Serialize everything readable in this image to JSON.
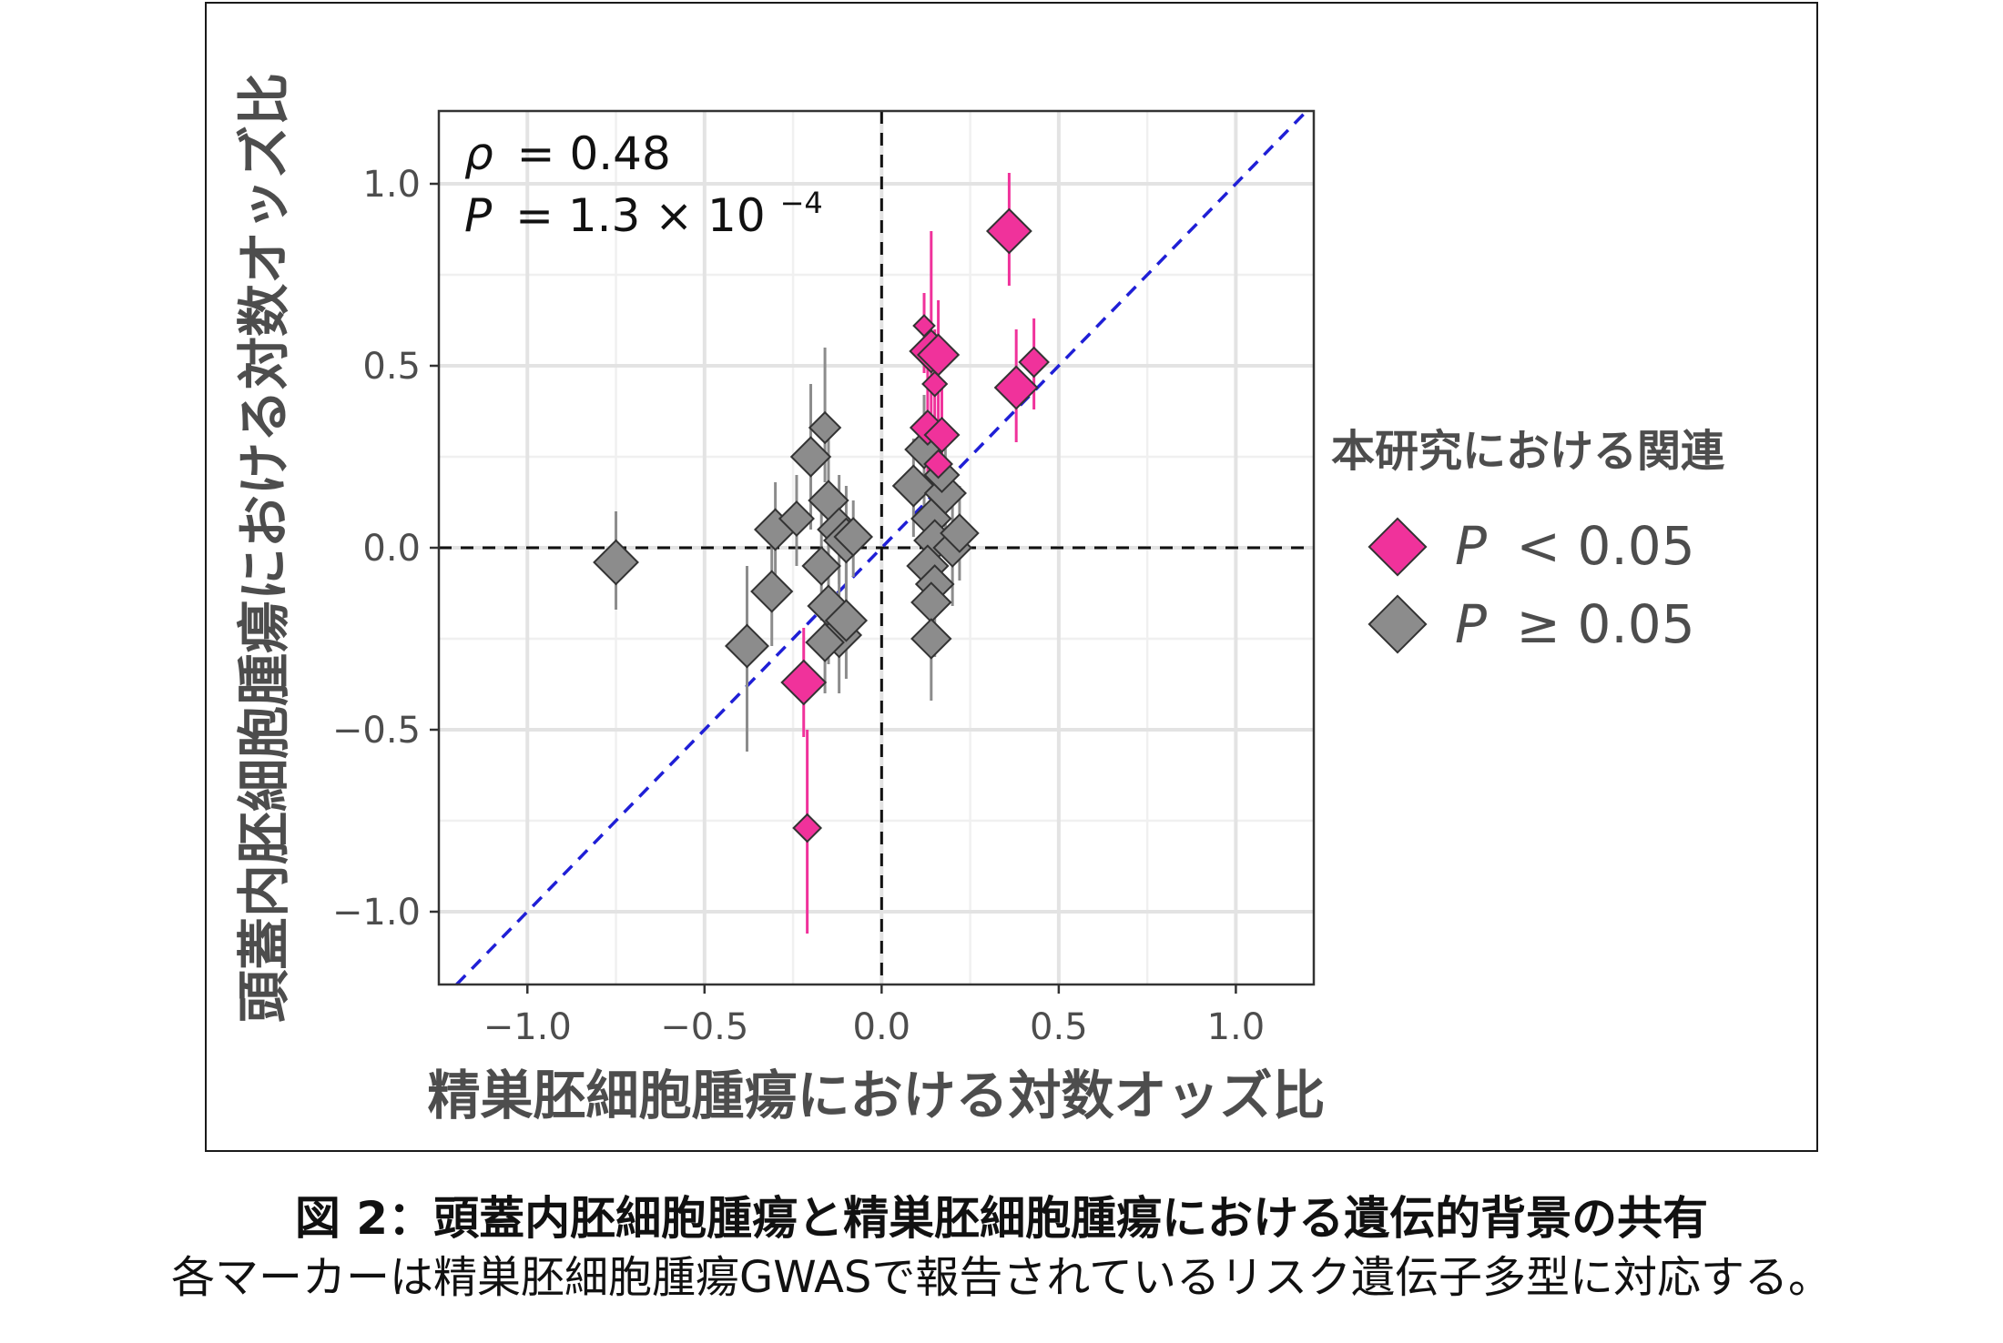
{
  "chart_data": {
    "type": "scatter",
    "xlabel": "精巣胚細胞腫瘍における対数オッズ比",
    "ylabel": "頭蓋内胚細胞腫瘍における対数オッズ比",
    "xlim": [
      -1.25,
      1.22
    ],
    "ylim": [
      -1.2,
      1.2
    ],
    "x_ticks": [
      {
        "value": -1.0,
        "label": "−1.0"
      },
      {
        "value": -0.5,
        "label": "−0.5"
      },
      {
        "value": 0.0,
        "label": "0.0"
      },
      {
        "value": 0.5,
        "label": "0.5"
      },
      {
        "value": 1.0,
        "label": "1.0"
      }
    ],
    "y_ticks": [
      {
        "value": 1.0,
        "label": "1.0"
      },
      {
        "value": 0.5,
        "label": "0.5"
      },
      {
        "value": 0.0,
        "label": "0.0"
      },
      {
        "value": -0.5,
        "label": "−0.5"
      },
      {
        "value": -1.0,
        "label": "−1.0"
      }
    ],
    "grid": true,
    "reference_lines": [
      "x=0",
      "y=0",
      "y=x"
    ],
    "stats": {
      "rho_symbol": "ρ",
      "rho_value": "= 0.48",
      "p_symbol": "P",
      "p_value": "= 1.3 × 10",
      "p_exponent": "−4"
    },
    "legend": {
      "title": "本研究における関連",
      "placement": "right",
      "items": [
        {
          "label": "< 0.05",
          "p_symbol": "P",
          "color": "#f0329b"
        },
        {
          "label": "≥ 0.05",
          "p_symbol": "P",
          "color": "#8c8c8c"
        }
      ]
    },
    "series": [
      {
        "group": "significant",
        "color": "#f0329b",
        "points": [
          {
            "x": 0.36,
            "y": 0.87,
            "lo": 0.72,
            "hi": 1.03,
            "s": 1.0
          },
          {
            "x": 0.38,
            "y": 0.44,
            "lo": 0.29,
            "hi": 0.6,
            "s": 0.95
          },
          {
            "x": 0.43,
            "y": 0.51,
            "lo": 0.38,
            "hi": 0.63,
            "s": 0.55
          },
          {
            "x": 0.14,
            "y": 0.54,
            "lo": 0.28,
            "hi": 0.87,
            "s": 0.95
          },
          {
            "x": 0.16,
            "y": 0.53,
            "lo": 0.34,
            "hi": 0.68,
            "s": 0.9
          },
          {
            "x": 0.12,
            "y": 0.61,
            "lo": 0.48,
            "hi": 0.7,
            "s": 0.3
          },
          {
            "x": 0.15,
            "y": 0.45,
            "lo": 0.3,
            "hi": 0.6,
            "s": 0.4
          },
          {
            "x": 0.13,
            "y": 0.33,
            "lo": 0.15,
            "hi": 0.52,
            "s": 0.7
          },
          {
            "x": 0.17,
            "y": 0.31,
            "lo": 0.18,
            "hi": 0.45,
            "s": 0.7
          },
          {
            "x": 0.16,
            "y": 0.23,
            "lo": 0.12,
            "hi": 0.35,
            "s": 0.5
          },
          {
            "x": -0.22,
            "y": -0.37,
            "lo": -0.52,
            "hi": -0.22,
            "s": 1.0
          },
          {
            "x": -0.21,
            "y": -0.77,
            "lo": -1.06,
            "hi": -0.5,
            "s": 0.5
          }
        ]
      },
      {
        "group": "not_significant",
        "color": "#8c8c8c",
        "points": [
          {
            "x": -0.75,
            "y": -0.04,
            "lo": -0.17,
            "hi": 0.1,
            "s": 1.0
          },
          {
            "x": -0.38,
            "y": -0.27,
            "lo": -0.56,
            "hi": -0.05,
            "s": 0.95
          },
          {
            "x": -0.31,
            "y": -0.12,
            "lo": -0.27,
            "hi": 0.03,
            "s": 0.9
          },
          {
            "x": -0.3,
            "y": 0.05,
            "lo": -0.08,
            "hi": 0.18,
            "s": 0.9
          },
          {
            "x": -0.24,
            "y": 0.08,
            "lo": -0.05,
            "hi": 0.2,
            "s": 0.7
          },
          {
            "x": -0.2,
            "y": 0.25,
            "lo": 0.05,
            "hi": 0.45,
            "s": 0.85
          },
          {
            "x": -0.16,
            "y": 0.33,
            "lo": 0.18,
            "hi": 0.55,
            "s": 0.6
          },
          {
            "x": -0.15,
            "y": 0.13,
            "lo": 0.0,
            "hi": 0.3,
            "s": 0.85
          },
          {
            "x": -0.12,
            "y": 0.05,
            "lo": -0.1,
            "hi": 0.2,
            "s": 0.95
          },
          {
            "x": -0.1,
            "y": 0.02,
            "lo": -0.12,
            "hi": 0.17,
            "s": 1.0
          },
          {
            "x": -0.08,
            "y": 0.03,
            "lo": -0.08,
            "hi": 0.13,
            "s": 0.8
          },
          {
            "x": -0.17,
            "y": -0.05,
            "lo": -0.2,
            "hi": 0.1,
            "s": 0.8
          },
          {
            "x": -0.15,
            "y": -0.16,
            "lo": -0.32,
            "hi": 0.0,
            "s": 0.9
          },
          {
            "x": -0.12,
            "y": -0.24,
            "lo": -0.4,
            "hi": -0.06,
            "s": 1.0
          },
          {
            "x": -0.1,
            "y": -0.2,
            "lo": -0.36,
            "hi": -0.04,
            "s": 0.9
          },
          {
            "x": -0.16,
            "y": -0.26,
            "lo": -0.4,
            "hi": -0.12,
            "s": 0.8
          },
          {
            "x": 0.09,
            "y": 0.17,
            "lo": 0.03,
            "hi": 0.3,
            "s": 0.9
          },
          {
            "x": 0.12,
            "y": 0.27,
            "lo": 0.1,
            "hi": 0.42,
            "s": 0.8
          },
          {
            "x": 0.14,
            "y": 0.08,
            "lo": -0.06,
            "hi": 0.22,
            "s": 0.85
          },
          {
            "x": 0.15,
            "y": 0.02,
            "lo": -0.12,
            "hi": 0.17,
            "s": 0.9
          },
          {
            "x": 0.18,
            "y": 0.15,
            "lo": 0.0,
            "hi": 0.3,
            "s": 0.9
          },
          {
            "x": 0.2,
            "y": 0.0,
            "lo": -0.16,
            "hi": 0.16,
            "s": 0.8
          },
          {
            "x": 0.22,
            "y": 0.04,
            "lo": -0.09,
            "hi": 0.17,
            "s": 0.8
          },
          {
            "x": 0.13,
            "y": -0.05,
            "lo": -0.17,
            "hi": 0.08,
            "s": 0.9
          },
          {
            "x": 0.15,
            "y": -0.1,
            "lo": -0.3,
            "hi": 0.1,
            "s": 0.8
          },
          {
            "x": 0.14,
            "y": -0.15,
            "lo": -0.3,
            "hi": 0.0,
            "s": 0.85
          },
          {
            "x": 0.14,
            "y": -0.25,
            "lo": -0.42,
            "hi": -0.08,
            "s": 0.85
          },
          {
            "x": 0.17,
            "y": 0.2,
            "lo": 0.06,
            "hi": 0.34,
            "s": 0.7
          }
        ]
      }
    ]
  },
  "caption": {
    "title": "図 2：頭蓋内胚細胞腫瘍と精巣胚細胞腫瘍における遺伝的背景の共有",
    "body": "各マーカーは精巣胚細胞腫瘍GWASで報告されているリスク遺伝子多型に対応する。"
  }
}
